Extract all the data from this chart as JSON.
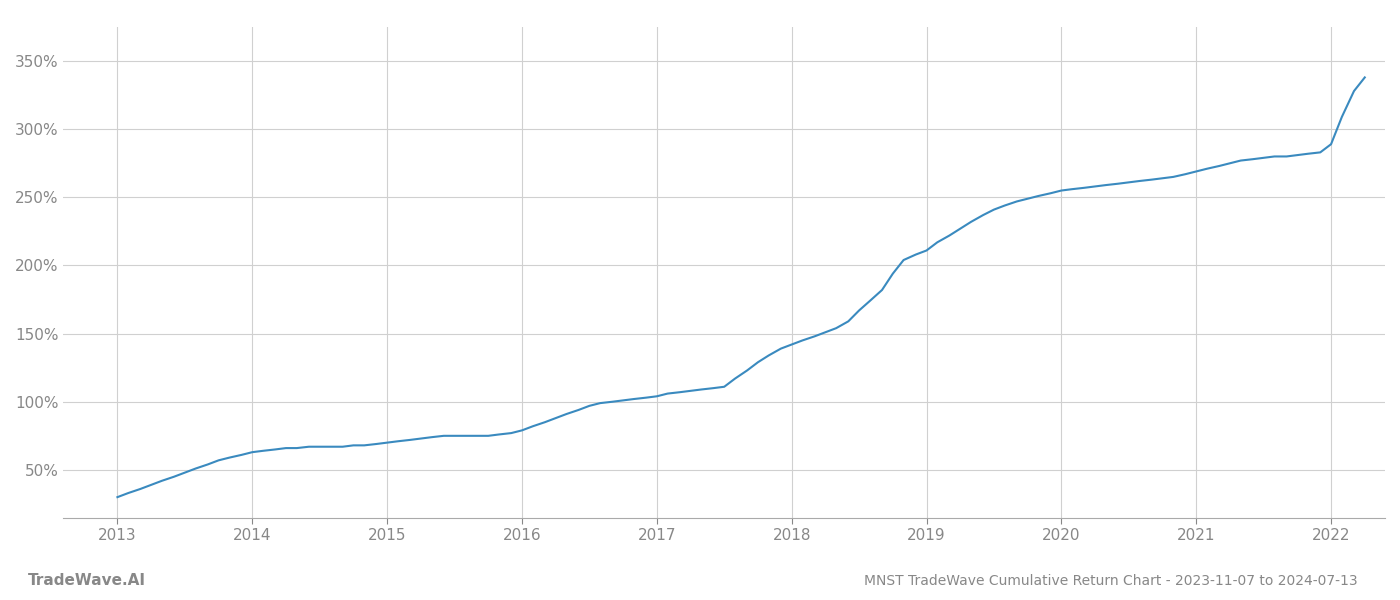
{
  "title": "MNST TradeWave Cumulative Return Chart - 2023-11-07 to 2024-07-13",
  "watermark": "TradeWave.AI",
  "line_color": "#3a8abf",
  "background_color": "#ffffff",
  "grid_color": "#d0d0d0",
  "x_years": [
    2013,
    2014,
    2015,
    2016,
    2017,
    2018,
    2019,
    2020,
    2021,
    2022
  ],
  "y_ticks": [
    50,
    100,
    150,
    200,
    250,
    300,
    350
  ],
  "xlim": [
    2012.6,
    2022.4
  ],
  "ylim": [
    15,
    375
  ],
  "data_x": [
    2013.0,
    2013.08,
    2013.17,
    2013.25,
    2013.33,
    2013.42,
    2013.5,
    2013.58,
    2013.67,
    2013.75,
    2013.83,
    2013.92,
    2014.0,
    2014.08,
    2014.17,
    2014.25,
    2014.33,
    2014.42,
    2014.5,
    2014.58,
    2014.67,
    2014.75,
    2014.83,
    2014.92,
    2015.0,
    2015.08,
    2015.17,
    2015.25,
    2015.33,
    2015.42,
    2015.5,
    2015.58,
    2015.67,
    2015.75,
    2015.83,
    2015.92,
    2016.0,
    2016.08,
    2016.17,
    2016.25,
    2016.33,
    2016.42,
    2016.5,
    2016.58,
    2016.67,
    2016.75,
    2016.83,
    2016.92,
    2017.0,
    2017.08,
    2017.17,
    2017.25,
    2017.33,
    2017.42,
    2017.5,
    2017.58,
    2017.67,
    2017.75,
    2017.83,
    2017.92,
    2018.0,
    2018.08,
    2018.17,
    2018.25,
    2018.33,
    2018.42,
    2018.5,
    2018.58,
    2018.67,
    2018.75,
    2018.83,
    2018.92,
    2019.0,
    2019.08,
    2019.17,
    2019.25,
    2019.33,
    2019.42,
    2019.5,
    2019.58,
    2019.67,
    2019.75,
    2019.83,
    2019.92,
    2020.0,
    2020.08,
    2020.17,
    2020.25,
    2020.33,
    2020.42,
    2020.5,
    2020.58,
    2020.67,
    2020.75,
    2020.83,
    2020.92,
    2021.0,
    2021.08,
    2021.17,
    2021.25,
    2021.33,
    2021.42,
    2021.5,
    2021.58,
    2021.67,
    2021.75,
    2021.83,
    2021.92,
    2022.0,
    2022.08,
    2022.17,
    2022.25
  ],
  "data_y": [
    30,
    33,
    36,
    39,
    42,
    45,
    48,
    51,
    54,
    57,
    59,
    61,
    63,
    64,
    65,
    66,
    66,
    67,
    67,
    67,
    67,
    68,
    68,
    69,
    70,
    71,
    72,
    73,
    74,
    75,
    75,
    75,
    75,
    75,
    76,
    77,
    79,
    82,
    85,
    88,
    91,
    94,
    97,
    99,
    100,
    101,
    102,
    103,
    104,
    106,
    107,
    108,
    109,
    110,
    111,
    117,
    123,
    129,
    134,
    139,
    142,
    145,
    148,
    151,
    154,
    159,
    167,
    174,
    182,
    194,
    204,
    208,
    211,
    217,
    222,
    227,
    232,
    237,
    241,
    244,
    247,
    249,
    251,
    253,
    255,
    256,
    257,
    258,
    259,
    260,
    261,
    262,
    263,
    264,
    265,
    267,
    269,
    271,
    273,
    275,
    277,
    278,
    279,
    280,
    280,
    281,
    282,
    283,
    289,
    309,
    328,
    338
  ]
}
